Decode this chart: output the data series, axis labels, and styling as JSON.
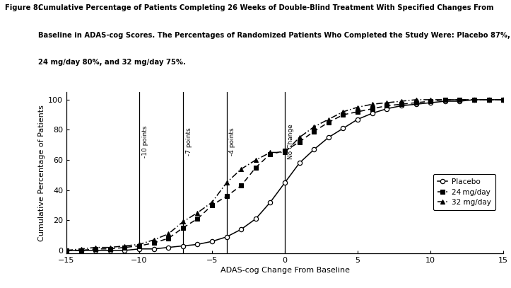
{
  "title_label": "Figure 8:",
  "title_text1": "  Cumulative Percentage of Patients Completing 26 Weeks of Double-Blind Treatment With Specified Changes From",
  "title_text2": "Baseline in ADAS-cog Scores. The Percentages of Randomized Patients Who Completed the Study Were: Placebo 87%,",
  "title_text3": "24 mg/day 80%, and 32 mg/day 75%.",
  "xlabel": "ADAS-cog Change From Baseline",
  "ylabel": "Cumulative Percentage of Patients",
  "xlim": [
    -15,
    15
  ],
  "ylim": [
    -2,
    105
  ],
  "xticks": [
    -15,
    -10,
    -5,
    0,
    5,
    10,
    15
  ],
  "yticks": [
    0,
    20,
    40,
    60,
    80,
    100
  ],
  "vlines": [
    -10,
    -7,
    -4,
    0
  ],
  "vline_labels": [
    "-10 points",
    "-7 points",
    "-4 points",
    "No Change"
  ],
  "background_color": "#ffffff",
  "placebo_x": [
    -15,
    -14,
    -13,
    -12,
    -11,
    -10,
    -9,
    -8,
    -7,
    -6,
    -5,
    -4,
    -3,
    -2,
    -1,
    0,
    1,
    2,
    3,
    4,
    5,
    6,
    7,
    8,
    9,
    10,
    11,
    12,
    13,
    14,
    15
  ],
  "placebo_y": [
    0,
    0,
    0,
    0,
    0,
    1,
    1,
    2,
    3,
    4,
    6,
    9,
    14,
    21,
    32,
    45,
    58,
    67,
    75,
    81,
    87,
    91,
    94,
    96,
    97,
    98,
    99,
    99,
    100,
    100,
    100
  ],
  "dose24_x": [
    -15,
    -14,
    -13,
    -12,
    -11,
    -10,
    -9,
    -8,
    -7,
    -6,
    -5,
    -4,
    -3,
    -2,
    -1,
    0,
    1,
    2,
    3,
    4,
    5,
    6,
    7,
    8,
    9,
    10,
    11,
    12,
    13,
    14,
    15
  ],
  "dose24_y": [
    0,
    0,
    1,
    1,
    2,
    3,
    5,
    8,
    15,
    21,
    30,
    36,
    43,
    55,
    64,
    66,
    72,
    79,
    85,
    90,
    92,
    94,
    96,
    97,
    98,
    99,
    100,
    100,
    100,
    100,
    100
  ],
  "dose32_x": [
    -15,
    -14,
    -13,
    -12,
    -11,
    -10,
    -9,
    -8,
    -7,
    -6,
    -5,
    -4,
    -3,
    -2,
    -1,
    0,
    1,
    2,
    3,
    4,
    5,
    6,
    7,
    8,
    9,
    10,
    11,
    12,
    13,
    14,
    15
  ],
  "dose32_y": [
    0,
    1,
    2,
    2,
    3,
    4,
    7,
    11,
    19,
    25,
    32,
    45,
    54,
    60,
    65,
    65,
    75,
    82,
    87,
    92,
    95,
    97,
    98,
    99,
    100,
    100,
    100,
    100,
    100,
    100,
    100
  ],
  "legend_labels": [
    "Placebo",
    "24 mg/day",
    "32 mg/day"
  ],
  "line_color": "#000000"
}
